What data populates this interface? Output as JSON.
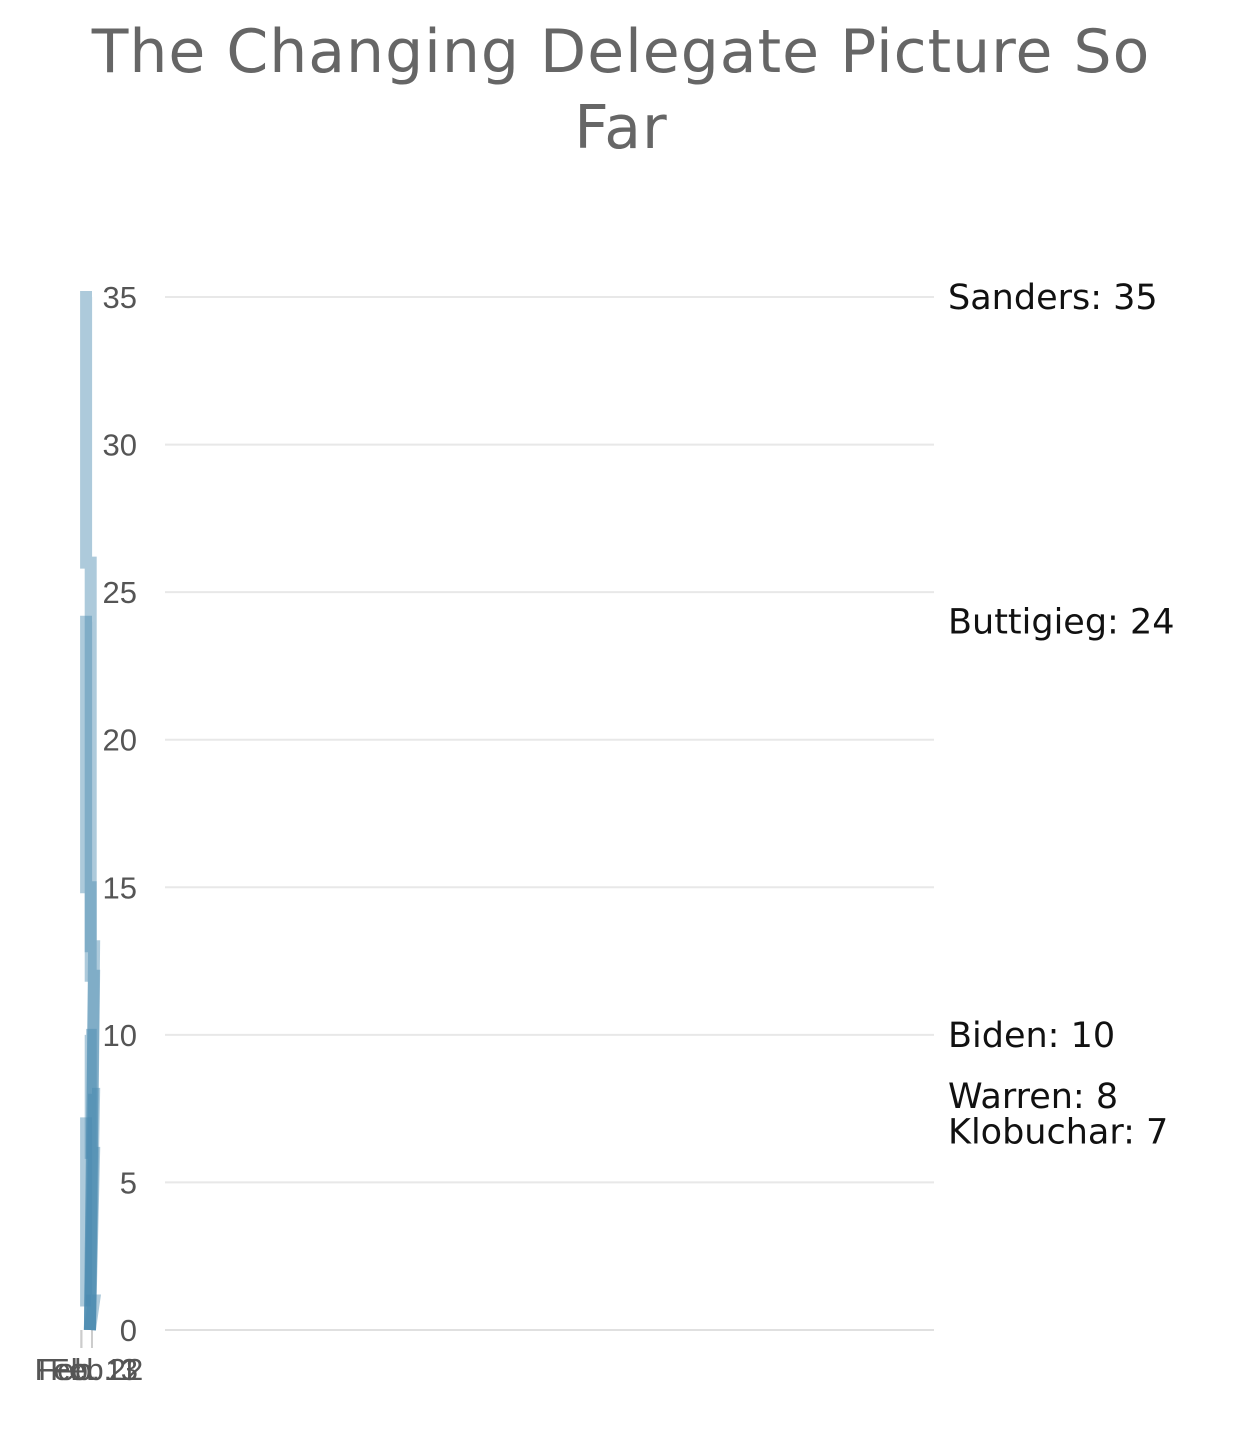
{
  "chart_data": {
    "type": "line",
    "title": "The Changing Delegate Picture So Far",
    "xlabel": "",
    "ylabel": "",
    "x_ticks": [
      "Feb. 3",
      "Feb. 11",
      "Feb. 22"
    ],
    "ylim": [
      0,
      35
    ],
    "y_ticks": [
      0,
      5,
      10,
      15,
      20,
      25,
      30,
      35
    ],
    "grid": true,
    "step": true,
    "color": "#4a8ab0",
    "series": [
      {
        "name": "Sanders",
        "label": "Sanders: 35",
        "points": [
          [
            "Feb. 2",
            0
          ],
          [
            "Feb. 3",
            12
          ],
          [
            "Feb. 22",
            12
          ],
          [
            "Feb. 22",
            26
          ],
          [
            "Feb. 11",
            26
          ],
          [
            "Feb. 11",
            35
          ],
          [
            "Feb. 25",
            35
          ]
        ]
      },
      {
        "name": "Buttigieg",
        "label": "Buttigieg: 24",
        "points": [
          [
            "Feb. 2",
            0
          ],
          [
            "Feb. 3",
            13
          ],
          [
            "Feb. 22",
            13
          ],
          [
            "Feb. 22",
            15
          ],
          [
            "Feb. 11",
            15
          ],
          [
            "Feb. 11",
            24
          ],
          [
            "Feb. 25",
            24
          ]
        ]
      },
      {
        "name": "Biden",
        "label": "Biden: 10",
        "points": [
          [
            "Feb. 2",
            0
          ],
          [
            "Feb. 3",
            6
          ],
          [
            "Feb. 22",
            6
          ],
          [
            "Feb. 22",
            10
          ],
          [
            "Feb. 11",
            10
          ],
          [
            "Feb. 25",
            10
          ]
        ]
      },
      {
        "name": "Warren",
        "label": "Warren: 8",
        "points": [
          [
            "Feb. 2",
            0
          ],
          [
            "Feb. 3",
            8
          ],
          [
            "Feb. 25",
            8
          ]
        ]
      },
      {
        "name": "Klobuchar",
        "label": "Klobuchar: 7",
        "points": [
          [
            "Feb. 2",
            0
          ],
          [
            "Feb. 3",
            1
          ],
          [
            "Feb. 11",
            1
          ],
          [
            "Feb. 11",
            7
          ],
          [
            "Feb. 25",
            7
          ]
        ]
      },
      {
        "name": "",
        "label": "",
        "points": [
          [
            "Feb. 11",
            1
          ],
          [
            "Feb. 22",
            1
          ]
        ]
      }
    ]
  }
}
